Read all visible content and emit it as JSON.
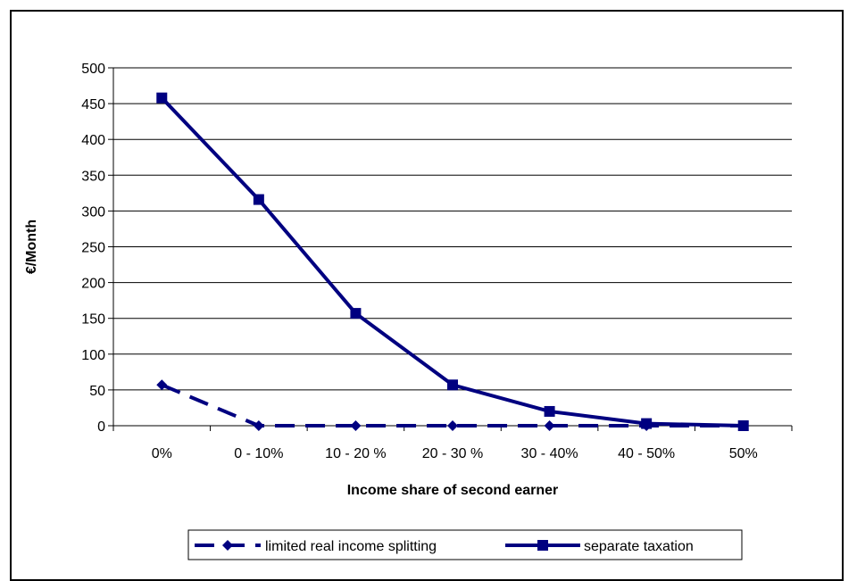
{
  "chart_data": {
    "type": "line",
    "title": "",
    "xlabel": "Income share of second earner",
    "ylabel": "€/Month",
    "categories": [
      "0%",
      "0 - 10%",
      "10 - 20 %",
      "20 - 30 %",
      "30 - 40%",
      "40 - 50%",
      "50%"
    ],
    "ylim": [
      0,
      500
    ],
    "yticks": [
      0,
      50,
      100,
      150,
      200,
      250,
      300,
      350,
      400,
      450,
      500
    ],
    "grid": true,
    "legend_position": "bottom",
    "series": [
      {
        "name": "limited real income splitting",
        "values": [
          57,
          0,
          0,
          0,
          0,
          0,
          0
        ],
        "marker": "diamond",
        "line": "dashed",
        "color": "#000080"
      },
      {
        "name": "separate taxation",
        "values": [
          458,
          316,
          157,
          57,
          20,
          3,
          0
        ],
        "marker": "square",
        "line": "solid",
        "color": "#000080"
      }
    ]
  }
}
